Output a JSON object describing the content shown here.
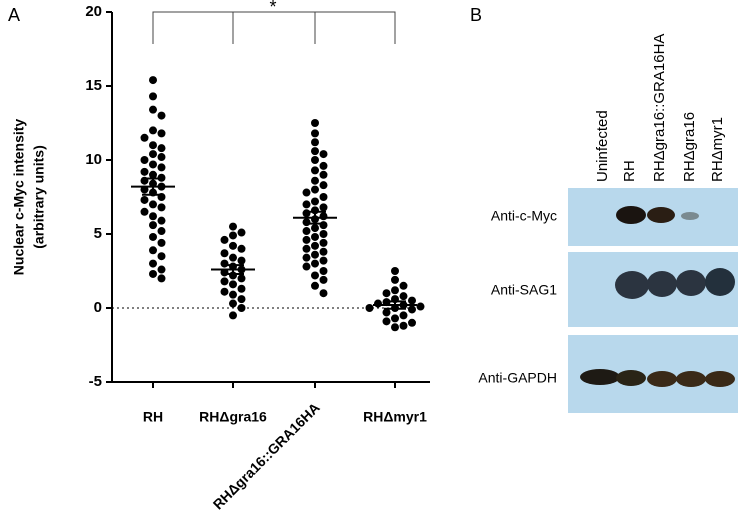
{
  "panel_labels": [
    "A",
    "B"
  ],
  "chart_data": {
    "type": "dot",
    "ylabel": [
      "Nuclear c-Myc intensity",
      "(arbitrary units)"
    ],
    "categories": [
      "RH",
      "RHΔgra16",
      "RHΔgra16::GRA16HA",
      "RHΔmyr1"
    ],
    "groups": [
      {
        "values": [
          15.4,
          14.3,
          13.4,
          13.0,
          12.0,
          11.8,
          11.5,
          11.0,
          10.8,
          10.4,
          10.2,
          10.0,
          9.7,
          9.5,
          9.2,
          9.0,
          8.8,
          8.6,
          8.4,
          8.2,
          8.0,
          7.8,
          7.5,
          7.3,
          7.0,
          6.8,
          6.5,
          6.2,
          5.9,
          5.6,
          5.2,
          4.8,
          4.4,
          3.9,
          3.5,
          3.0,
          2.6,
          2.3,
          2.0
        ],
        "mean": 8.2,
        "sem": 0.55
      },
      {
        "values": [
          5.5,
          5.1,
          4.9,
          4.6,
          4.2,
          4.0,
          3.7,
          3.4,
          3.2,
          3.0,
          2.8,
          2.6,
          2.4,
          2.2,
          2.0,
          1.8,
          1.6,
          1.3,
          1.1,
          0.9,
          0.6,
          0.3,
          0.0,
          -0.5
        ],
        "mean": 2.6,
        "sem": 0.3
      },
      {
        "values": [
          12.5,
          11.8,
          11.2,
          10.6,
          10.4,
          10.0,
          9.6,
          9.3,
          9.0,
          8.6,
          8.3,
          8.0,
          7.8,
          7.5,
          7.2,
          7.0,
          6.8,
          6.6,
          6.4,
          6.2,
          6.0,
          5.8,
          5.6,
          5.4,
          5.2,
          5.0,
          4.8,
          4.6,
          4.4,
          4.2,
          4.0,
          3.8,
          3.6,
          3.4,
          3.2,
          3.0,
          2.8,
          2.5,
          2.2,
          1.9,
          1.5,
          1.0
        ],
        "mean": 6.1,
        "sem": 0.4
      },
      {
        "values": [
          2.5,
          1.9,
          1.5,
          1.2,
          1.0,
          0.8,
          0.6,
          0.5,
          0.4,
          0.3,
          0.2,
          0.1,
          0.0,
          0.0,
          -0.1,
          -0.3,
          -0.5,
          -0.7,
          -0.9,
          -1.0,
          -1.2,
          -1.3
        ],
        "mean": 0.2,
        "sem": 0.25
      }
    ],
    "color": "#000000",
    "ylim": [
      -5,
      20
    ],
    "yticks": [
      -5,
      0,
      5,
      10,
      15,
      20
    ],
    "annotation": "*"
  },
  "blot": {
    "lanes": [
      "Uninfected",
      "RH",
      "RHΔgra16::GRA16HA",
      "RHΔgra16",
      "RHΔmyr1"
    ],
    "rows": [
      "Anti-c-Myc",
      "Anti-SAG1",
      "Anti-GAPDH"
    ]
  }
}
